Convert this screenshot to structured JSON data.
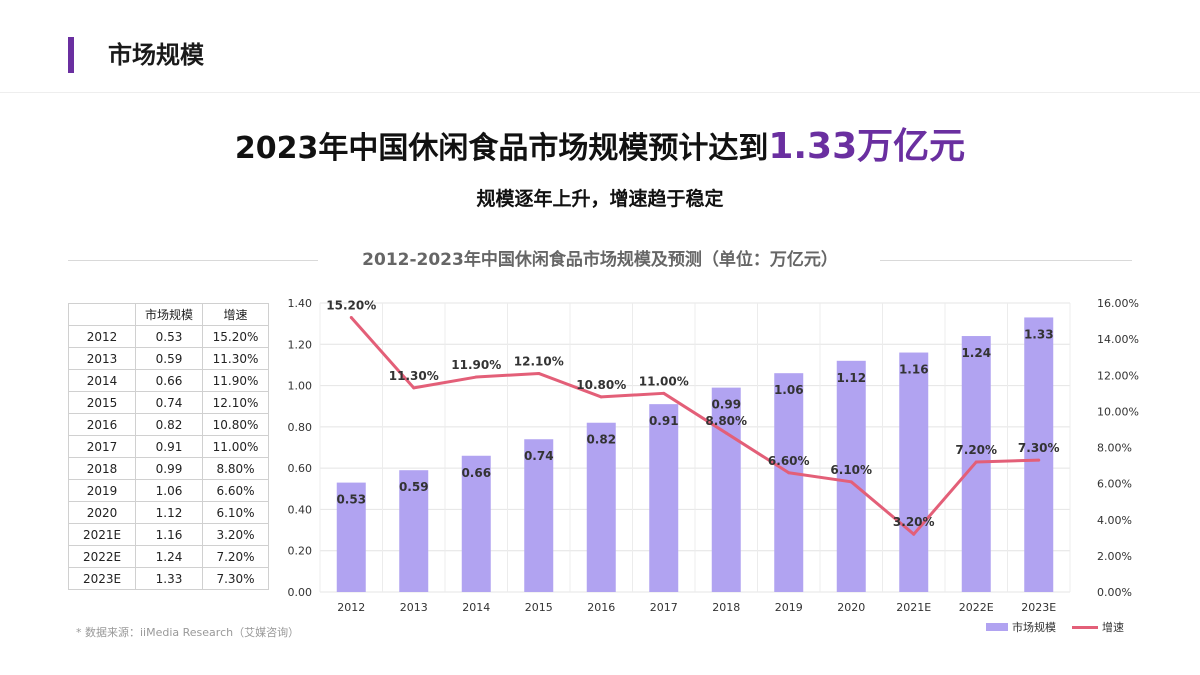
{
  "header": {
    "title": "市场规模"
  },
  "headline": {
    "text": "2023年中国休闲食品市场规模预计达到",
    "highlight": "1.33万亿元"
  },
  "subheadline": "规模逐年上升，增速趋于稳定",
  "table": {
    "headers": [
      "",
      "市场规模",
      "增速"
    ],
    "rows": [
      [
        "2012",
        "0.53",
        "15.20%"
      ],
      [
        "2013",
        "0.59",
        "11.30%"
      ],
      [
        "2014",
        "0.66",
        "11.90%"
      ],
      [
        "2015",
        "0.74",
        "12.10%"
      ],
      [
        "2016",
        "0.82",
        "10.80%"
      ],
      [
        "2017",
        "0.91",
        "11.00%"
      ],
      [
        "2018",
        "0.99",
        "8.80%"
      ],
      [
        "2019",
        "1.06",
        "6.60%"
      ],
      [
        "2020",
        "1.12",
        "6.10%"
      ],
      [
        "2021E",
        "1.16",
        "3.20%"
      ],
      [
        "2022E",
        "1.24",
        "7.20%"
      ],
      [
        "2023E",
        "1.33",
        "7.30%"
      ]
    ]
  },
  "source": "* 数据来源：iiMedia Research（艾媒咨询）",
  "colors": {
    "accent": "#6a2fa0",
    "bar": "#b1a3f1",
    "line": "#e35f78"
  },
  "chart_data": {
    "type": "bar",
    "title": "2012-2023年中国休闲食品市场规模及预测（单位：万亿元）",
    "categories": [
      "2012",
      "2013",
      "2014",
      "2015",
      "2016",
      "2017",
      "2018",
      "2019",
      "2020",
      "2021E",
      "2022E",
      "2023E"
    ],
    "series": [
      {
        "name": "市场规模",
        "type": "bar",
        "axis": "left",
        "values": [
          0.53,
          0.59,
          0.66,
          0.74,
          0.82,
          0.91,
          0.99,
          1.06,
          1.12,
          1.16,
          1.24,
          1.33
        ],
        "labels": [
          "0.53",
          "0.59",
          "0.66",
          "0.74",
          "0.82",
          "0.91",
          "0.99",
          "1.06",
          "1.12",
          "1.16",
          "1.24",
          "1.33"
        ]
      },
      {
        "name": "增速",
        "type": "line",
        "axis": "right",
        "values": [
          15.2,
          11.3,
          11.9,
          12.1,
          10.8,
          11.0,
          8.8,
          6.6,
          6.1,
          3.2,
          7.2,
          7.3
        ],
        "labels": [
          "15.20%",
          "11.30%",
          "11.90%",
          "12.10%",
          "10.80%",
          "11.00%",
          "8.80%",
          "6.60%",
          "6.10%",
          "3.20%",
          "7.20%",
          "7.30%"
        ]
      }
    ],
    "y_left": {
      "range": [
        0,
        1.4
      ],
      "ticks": [
        "0.00",
        "0.20",
        "0.40",
        "0.60",
        "0.80",
        "1.00",
        "1.20",
        "1.40"
      ]
    },
    "y_right": {
      "range": [
        0,
        16
      ],
      "ticks": [
        "0.00%",
        "2.00%",
        "4.00%",
        "6.00%",
        "8.00%",
        "10.00%",
        "12.00%",
        "14.00%",
        "16.00%"
      ]
    },
    "grid": true,
    "legend_position": "bottom-right"
  }
}
